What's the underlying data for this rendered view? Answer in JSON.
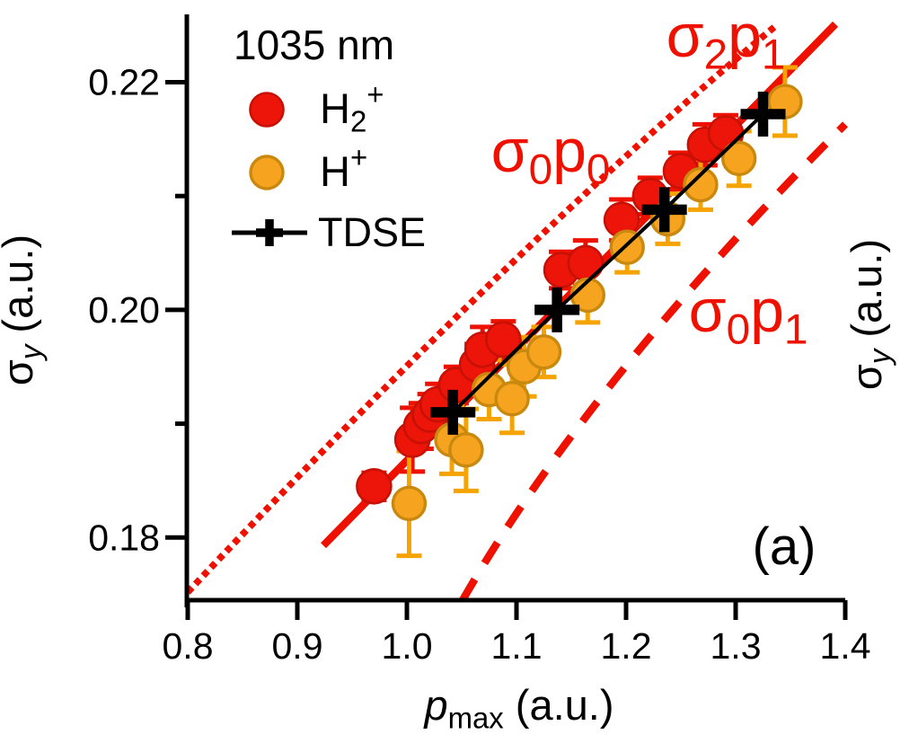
{
  "figure": {
    "panel_label": "(a)",
    "background": "#ffffff"
  },
  "colors": {
    "red": "#ed1409",
    "red_edge": "#c61104",
    "red_line": "#ee1100",
    "orange": "#f6a41f",
    "orange_edge": "#c9880e",
    "orange_bar": "#f5a300",
    "black": "#000000"
  },
  "legend": {
    "title": "1035 nm",
    "items": [
      {
        "name": "h2plus",
        "marker": "red-circle",
        "label_text": "H2+",
        "label_parts": [
          {
            "t": "H"
          },
          {
            "t": "2",
            "sub": true
          },
          {
            "t": "+",
            "sup": true
          }
        ]
      },
      {
        "name": "hplus",
        "marker": "orange-circle",
        "label_text": "H+",
        "label_parts": [
          {
            "t": "H"
          },
          {
            "t": "+",
            "sup": true
          }
        ]
      },
      {
        "name": "tdse",
        "marker": "black-cross-line",
        "label_text": "TDSE",
        "label_parts": [
          {
            "t": "TDSE"
          }
        ]
      }
    ]
  },
  "axes": {
    "x": {
      "title_text": "p_max (a.u.)",
      "title_parts": [
        {
          "t": "p",
          "italic": true
        },
        {
          "t": "max",
          "sub": true
        },
        {
          "t": " (a.u.)"
        }
      ],
      "tick_labels": [
        "0.8",
        "0.9",
        "1.0",
        "1.1",
        "1.2",
        "1.3",
        "1.4"
      ],
      "tick_values": [
        0.8,
        0.9,
        1.0,
        1.1,
        1.2,
        1.3,
        1.4
      ]
    },
    "y": {
      "title_text": "σ_y (a.u.)",
      "title_parts": [
        {
          "t": "σ"
        },
        {
          "t": "y",
          "sub": true,
          "italic": true
        },
        {
          "t": " (a.u.)"
        }
      ],
      "tick_labels": [
        "0.18",
        "0.20",
        "0.22"
      ],
      "tick_values": [
        0.18,
        0.2,
        0.22
      ],
      "minor_tick_values": [
        0.19,
        0.21
      ]
    },
    "y_right": {
      "title_text": "σ_y (a.u.)",
      "title_parts": [
        {
          "t": "σ"
        },
        {
          "t": "y",
          "sub": true,
          "italic": true
        },
        {
          "t": " (a.u.)"
        }
      ]
    }
  },
  "annotations": [
    {
      "name": "sigma2p1-label",
      "text": "σ2p1",
      "color_key": "red_line",
      "parts": [
        {
          "t": "σ"
        },
        {
          "t": "2",
          "sub": true
        },
        {
          "t": "p"
        },
        {
          "t": "1",
          "sub": true
        }
      ]
    },
    {
      "name": "sigma0p0-label",
      "text": "σ0p0",
      "color_key": "red_line",
      "parts": [
        {
          "t": "σ"
        },
        {
          "t": "0",
          "sub": true
        },
        {
          "t": "p"
        },
        {
          "t": "0",
          "sub": true
        }
      ]
    },
    {
      "name": "sigma0p1-label",
      "text": "σ0p1",
      "color_key": "red_line",
      "parts": [
        {
          "t": "σ"
        },
        {
          "t": "0",
          "sub": true
        },
        {
          "t": "p"
        },
        {
          "t": "1",
          "sub": true
        }
      ]
    },
    {
      "name": "panel-label",
      "text": "(a)",
      "color_key": "black",
      "parts": [
        {
          "t": "(a)"
        }
      ]
    }
  ],
  "chart_data": {
    "type": "scatter",
    "title": "1035 nm",
    "xlabel": "p_max (a.u.)",
    "ylabel": "σ_y (a.u.)",
    "xlim": [
      0.8,
      1.4
    ],
    "ylim": [
      0.1745,
      0.2258
    ],
    "x_ticks": [
      0.8,
      0.9,
      1.0,
      1.1,
      1.2,
      1.3,
      1.4
    ],
    "y_ticks": [
      0.18,
      0.2,
      0.22
    ],
    "y_minor_ticks": [
      0.19,
      0.21
    ],
    "grid": false,
    "legend_position": "top-left",
    "series": [
      {
        "name": "H2+",
        "marker": "circle",
        "color_key": "red",
        "errorbars": true,
        "points": [
          [
            0.97,
            0.1845,
            0.0012
          ],
          [
            1.005,
            0.1886,
            0.0028
          ],
          [
            1.013,
            0.1898,
            0.002
          ],
          [
            1.021,
            0.1908,
            0.0018
          ],
          [
            1.028,
            0.1917,
            0.0018
          ],
          [
            1.045,
            0.1934,
            0.0016
          ],
          [
            1.064,
            0.1952,
            0.0018
          ],
          [
            1.069,
            0.1965,
            0.002
          ],
          [
            1.088,
            0.1974,
            0.0016
          ],
          [
            1.141,
            0.2035,
            0.0016
          ],
          [
            1.163,
            0.2041,
            0.002
          ],
          [
            1.196,
            0.2079,
            0.0018
          ],
          [
            1.222,
            0.21,
            0.0016
          ],
          [
            1.25,
            0.2122,
            0.0016
          ],
          [
            1.272,
            0.2145,
            0.0018
          ],
          [
            1.291,
            0.2155,
            0.0016
          ]
        ]
      },
      {
        "name": "H+",
        "marker": "circle",
        "color_key": "orange",
        "errorbars": true,
        "points": [
          [
            1.002,
            0.183,
            0.0046
          ],
          [
            1.041,
            0.1886,
            0.003
          ],
          [
            1.054,
            0.1877,
            0.0036
          ],
          [
            1.075,
            0.193,
            0.0026
          ],
          [
            1.096,
            0.1922,
            0.003
          ],
          [
            1.107,
            0.195,
            0.0026
          ],
          [
            1.125,
            0.1963,
            0.0022
          ],
          [
            1.165,
            0.2013,
            0.0024
          ],
          [
            1.201,
            0.2055,
            0.0022
          ],
          [
            1.238,
            0.208,
            0.0022
          ],
          [
            1.268,
            0.211,
            0.0022
          ],
          [
            1.303,
            0.2133,
            0.0024
          ],
          [
            1.345,
            0.2183,
            0.003
          ]
        ]
      },
      {
        "name": "TDSE",
        "marker": "cross",
        "line": true,
        "color_key": "black",
        "points": [
          [
            1.042,
            0.191
          ],
          [
            1.137,
            0.2
          ],
          [
            1.235,
            0.2088
          ],
          [
            1.325,
            0.2172
          ]
        ]
      }
    ],
    "theory_lines": [
      {
        "name": "sigma0p0",
        "label": "σ0p0",
        "style": "dotted",
        "start": [
          0.8,
          0.1752
        ],
        "ctrl": [
          1.112,
          0.2071
        ],
        "end": [
          1.3385,
          0.2251
        ]
      },
      {
        "name": "sigma2p1",
        "label": "σ2p1",
        "style": "solid",
        "start": [
          0.9238,
          0.1793
        ],
        "end": [
          1.391,
          0.2251
        ]
      },
      {
        "name": "sigma0p1",
        "label": "σ0p1",
        "style": "dashed",
        "start": [
          1.0508,
          0.1745
        ],
        "ctrl": [
          1.1631,
          0.1934
        ],
        "end": [
          1.4,
          0.2163
        ]
      }
    ]
  }
}
